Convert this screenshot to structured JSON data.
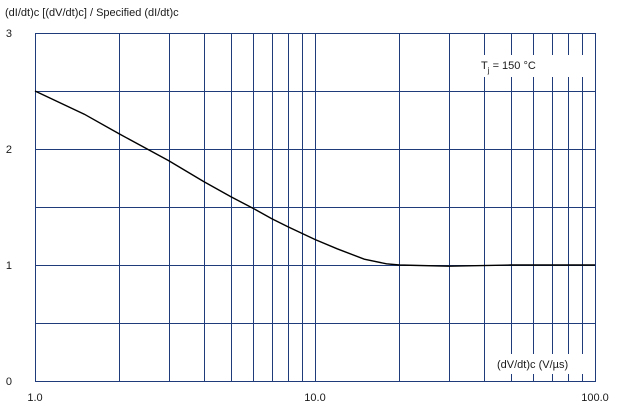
{
  "chart_data": {
    "type": "line",
    "x_scale": "log",
    "xlim": [
      1.0,
      100.0
    ],
    "ylim": [
      0,
      3
    ],
    "grid": true,
    "ylabel": "(dI/dt)c [(dV/dt)c] / Specified (dI/dt)c",
    "xlabel": "(dV/dt)c (V/µs)",
    "annotation": {
      "main": "T",
      "sub": "j",
      "rest": " = 150 °C"
    },
    "x_tick_labels": [
      "1.0",
      "10.0",
      "100.0"
    ],
    "x_tick_values": [
      1,
      10,
      100
    ],
    "y_tick_labels": [
      "0",
      "1",
      "2",
      "3"
    ],
    "y_tick_values": [
      0,
      1,
      2,
      3
    ],
    "series": [
      {
        "x": [
          1,
          1.5,
          2,
          3,
          4,
          5,
          6,
          7,
          8,
          10,
          12,
          15,
          18,
          20,
          30,
          50,
          100
        ],
        "y": [
          2.5,
          2.3,
          2.13,
          1.9,
          1.72,
          1.59,
          1.49,
          1.4,
          1.33,
          1.22,
          1.14,
          1.05,
          1.01,
          1.0,
          0.99,
          1.0,
          1.0
        ]
      }
    ]
  }
}
